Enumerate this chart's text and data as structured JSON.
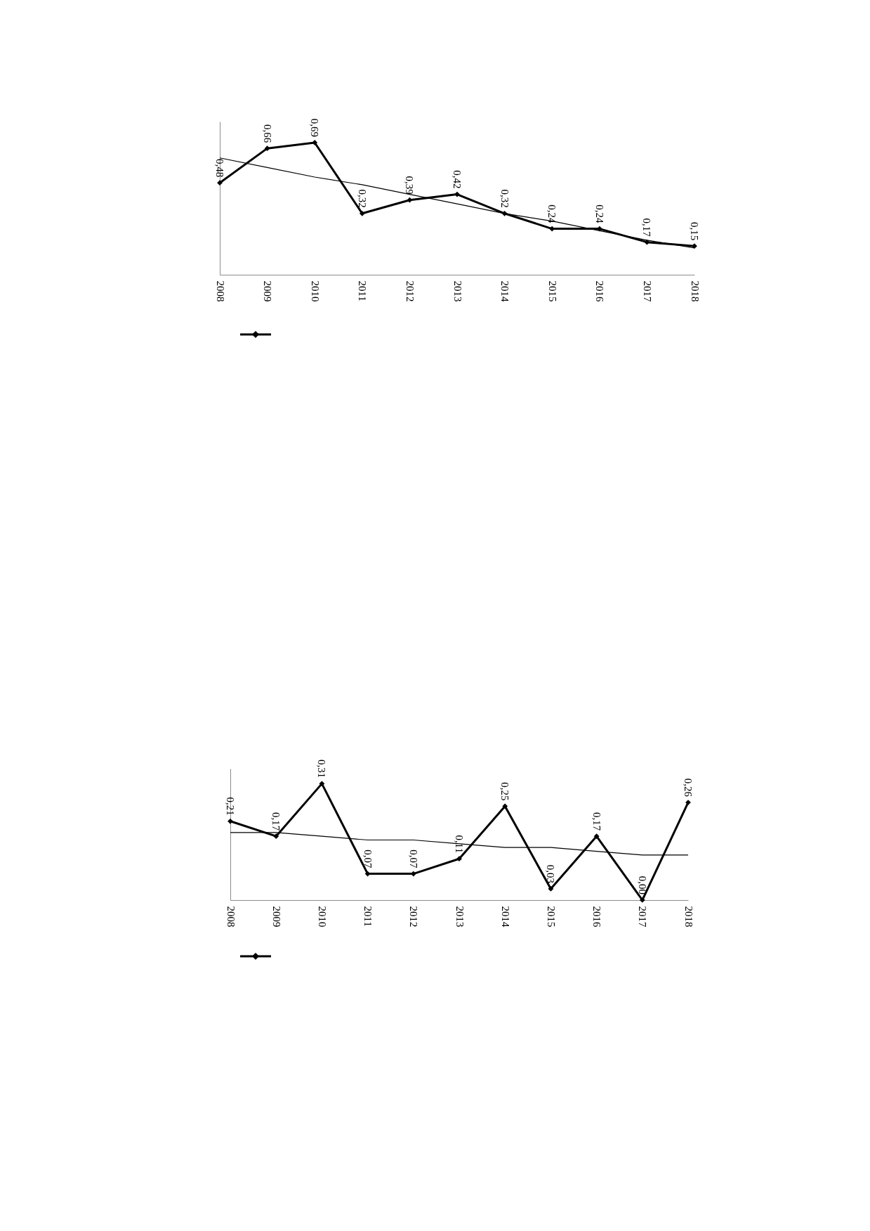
{
  "chart_data": [
    {
      "type": "line",
      "categories": [
        "2008",
        "2009",
        "2010",
        "2011",
        "2012",
        "2013",
        "2014",
        "2015",
        "2016",
        "2017",
        "2018"
      ],
      "ylim": [
        0,
        0.8
      ],
      "marker": "diamond",
      "series": [
        {
          "color": "#000000",
          "values": [
            0.48,
            0.66,
            0.69,
            0.32,
            0.39,
            0.42,
            0.32,
            0.24,
            0.24,
            0.17,
            0.15
          ],
          "value_labels": [
            "0,48",
            "0,66",
            "0,69",
            "0,32",
            "0,39",
            "0,42",
            "0,32",
            "0,24",
            "0,24",
            "0,17",
            "0,15"
          ]
        },
        {
          "type": "line",
          "color": "#000000",
          "marker": "none",
          "values": [
            0.61,
            0.56,
            0.51,
            0.47,
            0.42,
            0.37,
            0.32,
            0.28,
            0.23,
            0.18,
            0.14
          ]
        }
      ]
    },
    {
      "type": "line",
      "categories": [
        "2008",
        "2009",
        "2010",
        "2011",
        "2012",
        "2013",
        "2014",
        "2015",
        "2016",
        "2017",
        "2018"
      ],
      "ylim": [
        0,
        0.35
      ],
      "marker": "diamond",
      "series": [
        {
          "color": "#000000",
          "values": [
            0.21,
            0.17,
            0.31,
            0.07,
            0.07,
            0.11,
            0.25,
            0.03,
            0.17,
            0.0,
            0.26
          ],
          "value_labels": [
            "0,21",
            "0,17",
            "0,31",
            "0,07",
            "0,07",
            "0,11",
            "0,25",
            "0,03",
            "0,17",
            "0,00",
            "0,26"
          ]
        },
        {
          "type": "line",
          "color": "#000000",
          "marker": "none",
          "values": [
            0.18,
            0.18,
            0.17,
            0.16,
            0.16,
            0.15,
            0.14,
            0.14,
            0.13,
            0.12,
            0.12
          ]
        }
      ]
    }
  ]
}
